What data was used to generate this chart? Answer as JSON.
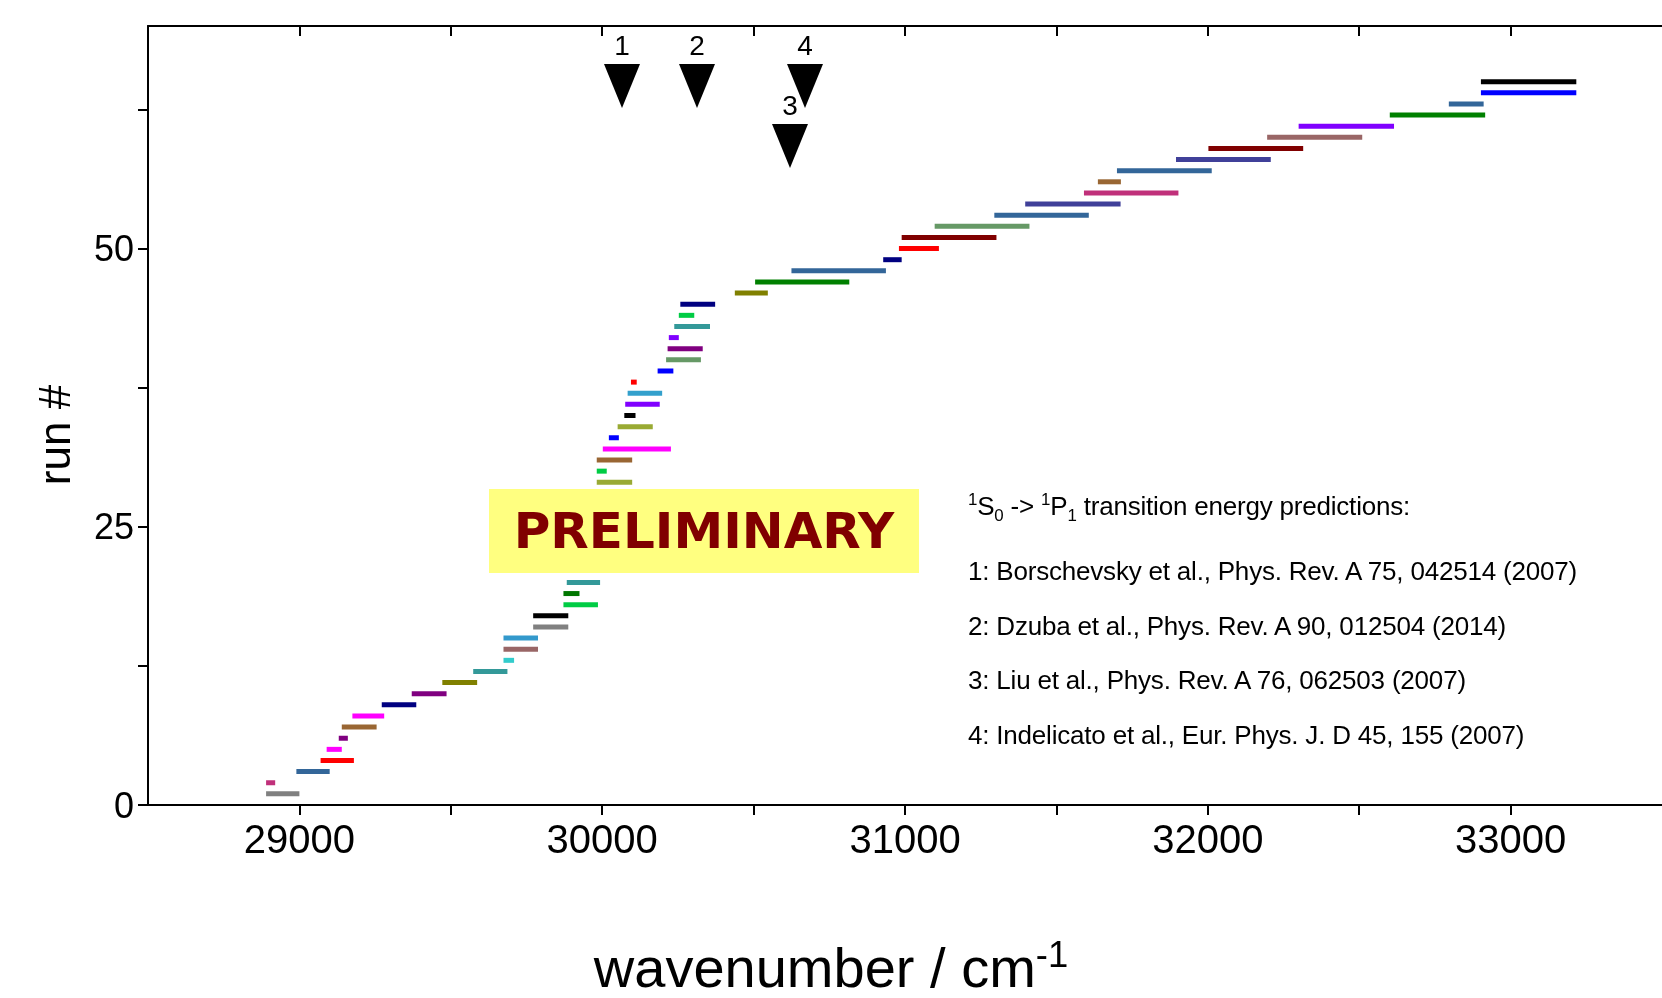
{
  "chart_data": {
    "type": "bar",
    "orientation": "horizontal",
    "xlabel": "wavenumber / cm$^{-1}$",
    "ylabel": "run #",
    "x": [
      1,
      2,
      3,
      4,
      5,
      6,
      7,
      8,
      9,
      10,
      11,
      12,
      13,
      14,
      15,
      16,
      17,
      18,
      19,
      20,
      29,
      30,
      31,
      32,
      33,
      34,
      35,
      36,
      37,
      38,
      39,
      40,
      41,
      42,
      43,
      44,
      45,
      46,
      47,
      48,
      49,
      50,
      51,
      52,
      53,
      54,
      55,
      56,
      57,
      58,
      59,
      60,
      61,
      62,
      63,
      64,
      65
    ],
    "base": [
      28890,
      28890,
      28990,
      29070,
      29090,
      29130,
      29140,
      29175,
      29272,
      29371,
      29472,
      29574,
      29674,
      29674,
      29674,
      29772,
      29772,
      29872,
      29872,
      29883,
      29982,
      29982,
      29982,
      30002,
      30022,
      30051,
      30073,
      30076,
      30084,
      30095,
      30183,
      30211,
      30216,
      30220,
      30238,
      30253,
      30258,
      30438,
      30505,
      30625,
      30928,
      30980,
      30989,
      31098,
      31295,
      31397,
      31591,
      31637,
      31700,
      31895,
      32002,
      32196,
      32300,
      32601,
      32796,
      32902,
      32902
    ],
    "values": [
      110,
      30,
      110,
      110,
      50,
      30,
      115,
      105,
      114,
      115,
      115,
      113,
      35,
      114,
      114,
      116,
      116,
      114,
      53,
      110,
      117,
      33,
      117,
      225,
      33,
      116,
      37,
      114,
      114,
      19,
      52,
      115,
      116,
      33,
      118,
      51,
      115,
      109,
      311,
      312,
      61,
      132,
      313,
      313,
      312,
      315,
      312,
      76,
      313,
      313,
      313,
      314,
      315,
      315,
      115,
      315,
      315
    ],
    "colors": [
      "#808080",
      "#c0307a",
      "#336699",
      "#ff0000",
      "#ff00ff",
      "#800080",
      "#996633",
      "#ff00ff",
      "#000080",
      "#800080",
      "#808000",
      "#339999",
      "#33cccc",
      "#996666",
      "#3399cc",
      "#808080",
      "#000000",
      "#00cc44",
      "#007700",
      "#339999",
      "#99aa33",
      "#00cc44",
      "#996633",
      "#ff00ff",
      "#0000ff",
      "#99aa33",
      "#000000",
      "#8000ff",
      "#33a0cc",
      "#ff0000",
      "#0000ff",
      "#669966",
      "#800080",
      "#8000ff",
      "#339999",
      "#00cc44",
      "#000080",
      "#808000",
      "#008000",
      "#336699",
      "#000080",
      "#ff0000",
      "#800000",
      "#669966",
      "#336699",
      "#404099",
      "#c0307a",
      "#996633",
      "#336699",
      "#404099",
      "#800000",
      "#996666",
      "#8000ff",
      "#008000",
      "#336699",
      "#0000ff",
      "#000000"
    ],
    "xlim": [
      28500,
      33500
    ],
    "xticks": [
      29000,
      {
        "value": 29500,
        "label": null
      },
      30000,
      {
        "value": 30500,
        "label": null
      },
      31000,
      {
        "value": 31500,
        "label": null
      },
      32000,
      {
        "value": 32500,
        "label": null
      },
      33000
    ],
    "ylim": [
      0,
      70
    ],
    "yticks": [
      0,
      {
        "value": 12.5,
        "label": null
      },
      25,
      {
        "value": 37.5,
        "label": null
      },
      50,
      {
        "value": 62.5,
        "label": null
      }
    ],
    "annotations": [
      "1",
      "2",
      "3",
      "4",
      "PRELIMINARY",
      "$^{1}$S$_{0}$ -> $^{1}$P$_{1}$ transition energy predictions:",
      "1: Borschevsky et al., Phys. Rev. A 75, 042514 (2007)",
      "2: Dzuba et al., Phys. Rev. A 90, 012504 (2014)",
      "3: Liu et al., Phys. Rev. A 76, 062503 (2007)",
      "4: Indelicato et al., Eur. Phys. J. D 45, 155 (2007)"
    ]
  }
}
